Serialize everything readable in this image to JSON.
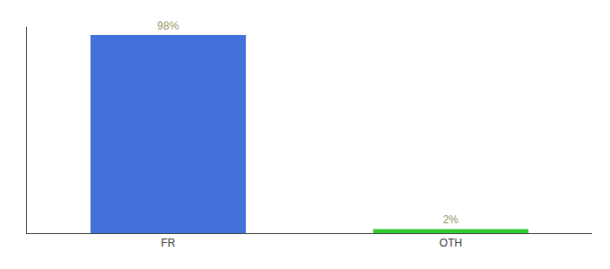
{
  "chart_data": {
    "type": "bar",
    "categories": [
      "FR",
      "OTH"
    ],
    "values": [
      98,
      2
    ],
    "value_labels": [
      "98%",
      "2%"
    ],
    "colors": [
      "#4472db",
      "#33cc33"
    ],
    "ylim": [
      0,
      102
    ],
    "grid": false,
    "data_labels": true,
    "tick_labels": "x"
  }
}
